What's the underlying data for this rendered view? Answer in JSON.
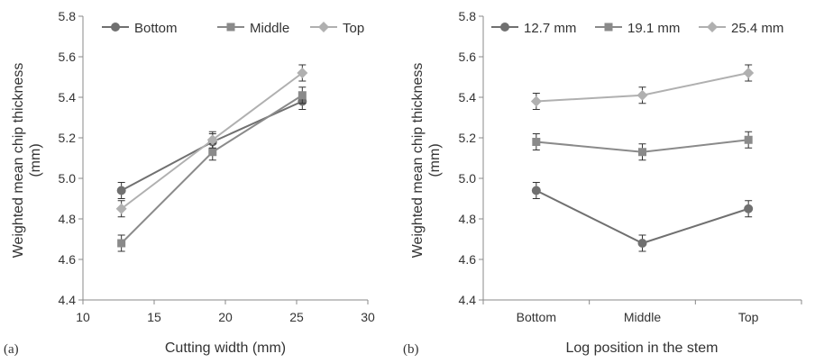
{
  "chart_data": [
    {
      "type": "line",
      "panel_label": "(a)",
      "xlabel": "Cutting width (mm)",
      "ylabel_line1": "Weighted mean chip thickness",
      "ylabel_line2": "(mm)",
      "xlim": [
        10,
        30
      ],
      "ylim": [
        4.4,
        5.8
      ],
      "xticks": [
        "10",
        "15",
        "20",
        "25",
        "30"
      ],
      "yticks": [
        "4.4",
        "4.6",
        "4.8",
        "5.0",
        "5.2",
        "5.4",
        "5.6",
        "5.8"
      ],
      "x": [
        12.7,
        19.1,
        25.4
      ],
      "legend_position": "top",
      "series": [
        {
          "name": "Bottom",
          "marker": "circle",
          "color": "#707070",
          "values": [
            4.94,
            5.18,
            5.38
          ],
          "err": [
            0.04,
            0.04,
            0.04
          ]
        },
        {
          "name": "Middle",
          "marker": "square",
          "color": "#8a8a8a",
          "values": [
            4.68,
            5.13,
            5.41
          ],
          "err": [
            0.04,
            0.04,
            0.04
          ]
        },
        {
          "name": "Top",
          "marker": "diamond",
          "color": "#b0b0b0",
          "values": [
            4.85,
            5.19,
            5.52
          ],
          "err": [
            0.04,
            0.04,
            0.04
          ]
        }
      ]
    },
    {
      "type": "line",
      "panel_label": "(b)",
      "xlabel": "Log position in the stem",
      "ylabel_line1": "Weighted mean chip thickness",
      "ylabel_line2": "(mm)",
      "ylim": [
        4.4,
        5.8
      ],
      "yticks": [
        "4.4",
        "4.6",
        "4.8",
        "5.0",
        "5.2",
        "5.4",
        "5.6",
        "5.8"
      ],
      "categories": [
        "Bottom",
        "Middle",
        "Top"
      ],
      "legend_position": "top",
      "series": [
        {
          "name": "12.7 mm",
          "marker": "circle",
          "color": "#707070",
          "values": [
            4.94,
            4.68,
            4.85
          ],
          "err": [
            0.04,
            0.04,
            0.04
          ]
        },
        {
          "name": "19.1 mm",
          "marker": "square",
          "color": "#8a8a8a",
          "values": [
            5.18,
            5.13,
            5.19
          ],
          "err": [
            0.04,
            0.04,
            0.04
          ]
        },
        {
          "name": "25.4 mm",
          "marker": "diamond",
          "color": "#b0b0b0",
          "values": [
            5.38,
            5.41,
            5.52
          ],
          "err": [
            0.04,
            0.04,
            0.04
          ]
        }
      ]
    }
  ]
}
